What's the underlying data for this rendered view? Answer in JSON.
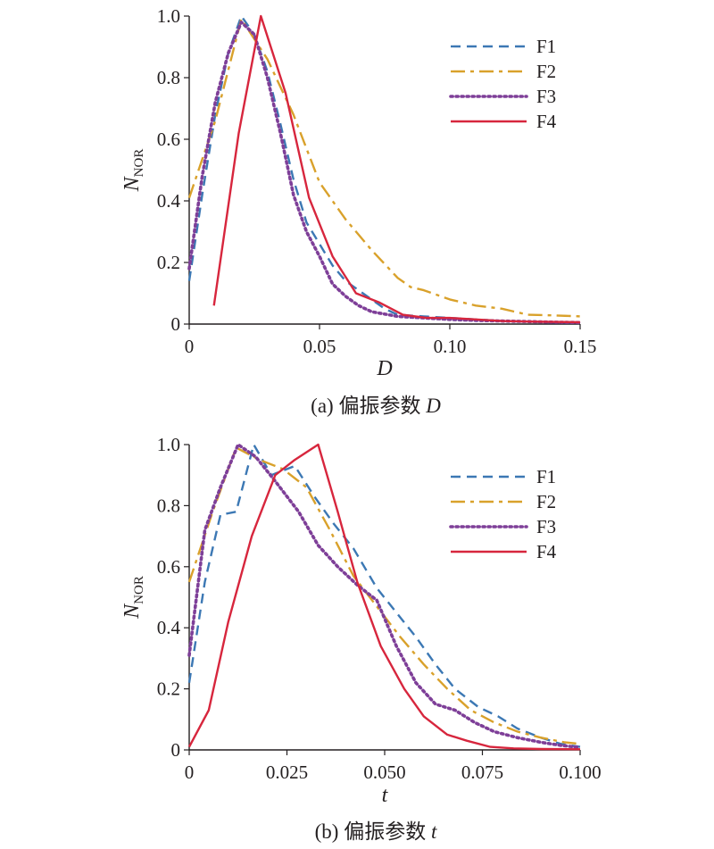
{
  "chart_data": [
    {
      "type": "line",
      "caption": "(a) 偏振参数 D",
      "xlabel": "D",
      "ylabel_main": "N",
      "ylabel_sub": "NOR",
      "xlim": [
        0,
        0.15
      ],
      "ylim": [
        0,
        1.0
      ],
      "xticks": [
        "0",
        "0.05",
        "0.10",
        "0.15"
      ],
      "xtick_values": [
        0,
        0.05,
        0.1,
        0.15
      ],
      "yticks": [
        "0",
        "0.2",
        "0.4",
        "0.6",
        "0.8",
        "1.0"
      ],
      "ytick_values": [
        0,
        0.2,
        0.4,
        0.6,
        0.8,
        1.0
      ],
      "grid": false,
      "legend_position": "top-right",
      "series": [
        {
          "name": "F1",
          "color": "#3c78b4",
          "dash": "dashed",
          "x": [
            0,
            0.005,
            0.01,
            0.015,
            0.02,
            0.025,
            0.03,
            0.035,
            0.04,
            0.045,
            0.05,
            0.055,
            0.06,
            0.065,
            0.07,
            0.075,
            0.08,
            0.09,
            0.1,
            0.11,
            0.12,
            0.13,
            0.14,
            0.15
          ],
          "y": [
            0.14,
            0.42,
            0.68,
            0.88,
            1.0,
            0.94,
            0.82,
            0.65,
            0.47,
            0.33,
            0.26,
            0.19,
            0.14,
            0.11,
            0.08,
            0.05,
            0.03,
            0.025,
            0.02,
            0.015,
            0.01,
            0.008,
            0.005,
            0.004
          ]
        },
        {
          "name": "F2",
          "color": "#d9a12b",
          "dash": "dashdot",
          "x": [
            0,
            0.01,
            0.02,
            0.03,
            0.04,
            0.05,
            0.06,
            0.065,
            0.07,
            0.08,
            0.085,
            0.09,
            0.1,
            0.11,
            0.12,
            0.13,
            0.14,
            0.15
          ],
          "y": [
            0.41,
            0.66,
            0.99,
            0.86,
            0.68,
            0.46,
            0.34,
            0.29,
            0.24,
            0.15,
            0.12,
            0.11,
            0.08,
            0.06,
            0.05,
            0.03,
            0.028,
            0.025
          ]
        },
        {
          "name": "F3",
          "color": "#7e3f98",
          "dash": "dotted",
          "x": [
            0,
            0.005,
            0.01,
            0.015,
            0.02,
            0.025,
            0.03,
            0.035,
            0.04,
            0.045,
            0.05,
            0.055,
            0.06,
            0.065,
            0.07,
            0.08,
            0.09,
            0.1,
            0.11,
            0.12,
            0.13,
            0.14,
            0.15
          ],
          "y": [
            0.18,
            0.48,
            0.72,
            0.88,
            0.98,
            0.94,
            0.8,
            0.62,
            0.42,
            0.3,
            0.22,
            0.13,
            0.09,
            0.06,
            0.04,
            0.025,
            0.02,
            0.015,
            0.012,
            0.01,
            0.008,
            0.006,
            0.005
          ]
        },
        {
          "name": "F4",
          "color": "#d7263d",
          "dash": "solid",
          "x": [
            0.0095,
            0.019,
            0.0275,
            0.037,
            0.046,
            0.055,
            0.064,
            0.073,
            0.082,
            0.091,
            0.1,
            0.11,
            0.12,
            0.13,
            0.14,
            0.15
          ],
          "y": [
            0.06,
            0.62,
            1.0,
            0.75,
            0.41,
            0.22,
            0.1,
            0.07,
            0.03,
            0.02,
            0.02,
            0.015,
            0.01,
            0.008,
            0.007,
            0.006
          ]
        }
      ]
    },
    {
      "type": "line",
      "caption": "(b) 偏振参数 t",
      "xlabel": "t",
      "ylabel_main": "N",
      "ylabel_sub": "NOR",
      "xlim": [
        0,
        0.1
      ],
      "ylim": [
        0,
        1.0
      ],
      "xticks": [
        "0",
        "0.025",
        "0.050",
        "0.075",
        "0.100"
      ],
      "xtick_values": [
        0,
        0.025,
        0.05,
        0.075,
        0.1
      ],
      "yticks": [
        "0",
        "0.2",
        "0.4",
        "0.6",
        "0.8",
        "1.0"
      ],
      "ytick_values": [
        0,
        0.2,
        0.4,
        0.6,
        0.8,
        1.0
      ],
      "grid": false,
      "legend_position": "top-right",
      "series": [
        {
          "name": "F1",
          "color": "#3c78b4",
          "dash": "dashed",
          "x": [
            0,
            0.004,
            0.008,
            0.012,
            0.0165,
            0.021,
            0.027,
            0.032,
            0.037,
            0.042,
            0.048,
            0.053,
            0.058,
            0.063,
            0.068,
            0.074,
            0.079,
            0.084,
            0.09,
            0.095,
            0.1
          ],
          "y": [
            0.22,
            0.55,
            0.77,
            0.78,
            1.0,
            0.9,
            0.93,
            0.83,
            0.74,
            0.66,
            0.53,
            0.45,
            0.37,
            0.28,
            0.2,
            0.14,
            0.11,
            0.07,
            0.04,
            0.02,
            0.01
          ]
        },
        {
          "name": "F2",
          "color": "#d9a12b",
          "dash": "dashdot",
          "x": [
            0,
            0.006,
            0.012,
            0.018,
            0.024,
            0.03,
            0.036,
            0.042,
            0.048,
            0.054,
            0.06,
            0.066,
            0.072,
            0.078,
            0.084,
            0.09,
            0.096,
            0.1
          ],
          "y": [
            0.55,
            0.78,
            0.99,
            0.95,
            0.92,
            0.86,
            0.72,
            0.57,
            0.47,
            0.37,
            0.28,
            0.2,
            0.13,
            0.09,
            0.06,
            0.04,
            0.025,
            0.02
          ]
        },
        {
          "name": "F3",
          "color": "#7e3f98",
          "dash": "dotted",
          "x": [
            0,
            0.004,
            0.008,
            0.0125,
            0.017,
            0.022,
            0.028,
            0.033,
            0.038,
            0.043,
            0.048,
            0.053,
            0.058,
            0.063,
            0.068,
            0.073,
            0.078,
            0.084,
            0.09,
            0.095,
            0.1
          ],
          "y": [
            0.31,
            0.72,
            0.86,
            1.0,
            0.96,
            0.88,
            0.78,
            0.67,
            0.6,
            0.54,
            0.49,
            0.34,
            0.22,
            0.15,
            0.13,
            0.09,
            0.06,
            0.04,
            0.025,
            0.015,
            0.008
          ]
        },
        {
          "name": "F4",
          "color": "#d7263d",
          "dash": "solid",
          "x": [
            0,
            0.005,
            0.01,
            0.016,
            0.022,
            0.027,
            0.033,
            0.038,
            0.043,
            0.049,
            0.055,
            0.06,
            0.066,
            0.071,
            0.077,
            0.083,
            0.09,
            0.1
          ],
          "y": [
            0.01,
            0.13,
            0.42,
            0.7,
            0.9,
            0.95,
            1.0,
            0.78,
            0.55,
            0.34,
            0.2,
            0.11,
            0.05,
            0.03,
            0.01,
            0.005,
            0.003,
            0.002
          ]
        }
      ]
    }
  ]
}
